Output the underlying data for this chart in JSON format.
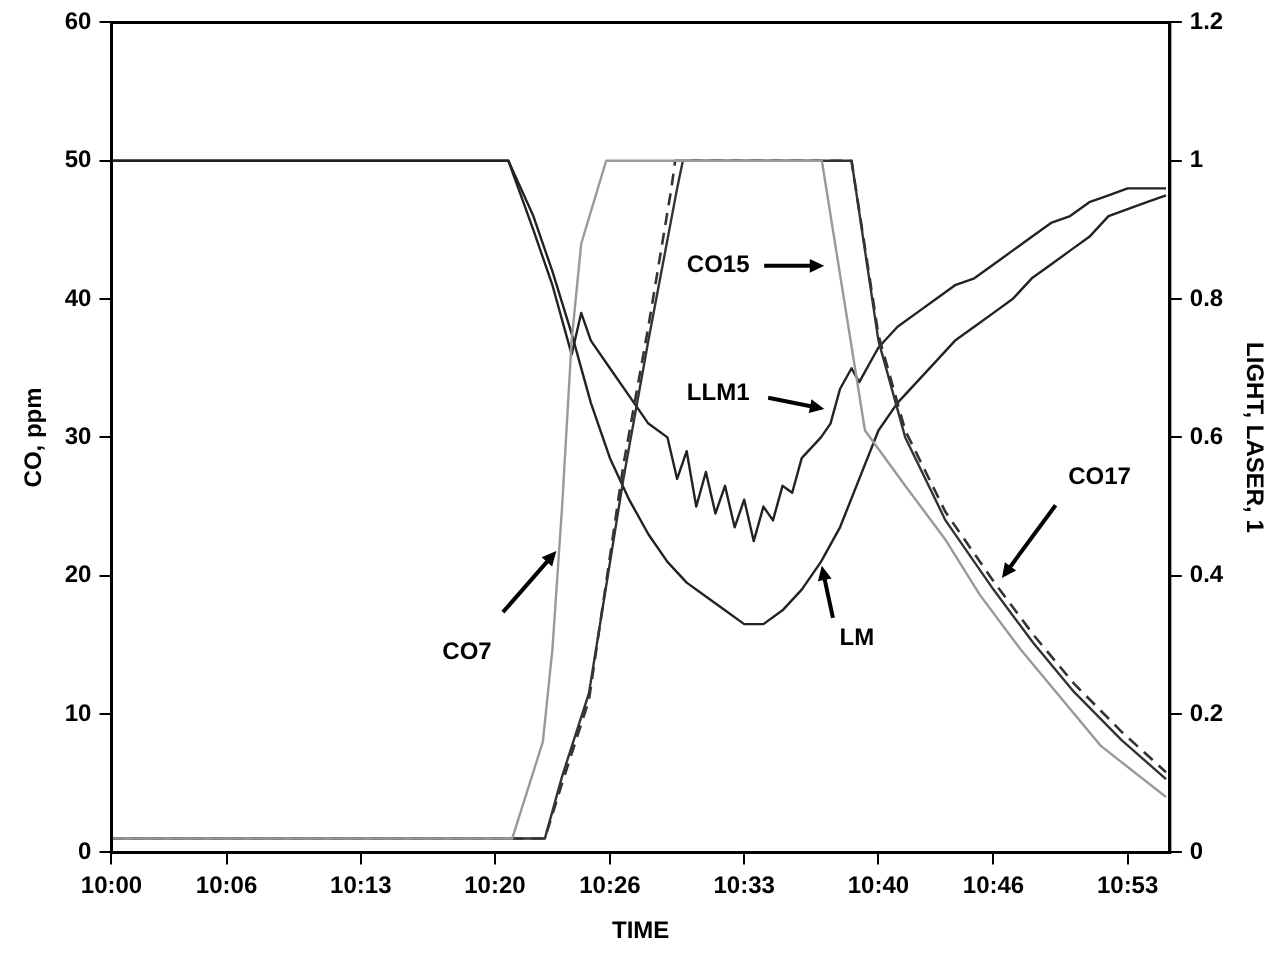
{
  "chart_data": {
    "type": "line",
    "xlabel": "TIME",
    "ylabel": "CO, ppm",
    "y2label": "LIGHT, LASER, 1",
    "xlim": [
      10,
      10.92
    ],
    "xticks": [
      {
        "value": 10,
        "label": "10:00"
      },
      {
        "value": 10.1,
        "label": "10:06"
      },
      {
        "value": 10.2167,
        "label": "10:13"
      },
      {
        "value": 10.3333,
        "label": "10:20"
      },
      {
        "value": 10.4333,
        "label": "10:26"
      },
      {
        "value": 10.55,
        "label": "10:33"
      },
      {
        "value": 10.6667,
        "label": "10:40"
      },
      {
        "value": 10.7667,
        "label": "10:46"
      },
      {
        "value": 10.8833,
        "label": "10:53"
      }
    ],
    "ylim": [
      0,
      60
    ],
    "yticks": [
      0,
      10,
      20,
      30,
      40,
      50,
      60
    ],
    "y2lim": [
      0,
      1.2
    ],
    "y2ticks": [
      0,
      0.2,
      0.4,
      0.6,
      0.8,
      1,
      1.2
    ],
    "grid": false,
    "legend": false,
    "marker": "none",
    "series": [
      {
        "color": "#999999",
        "line_style": "solid",
        "x": [
          10,
          10.3483,
          10.375,
          10.3833,
          10.3917,
          10.4,
          10.4083,
          10.43,
          10.6175,
          10.655,
          10.69,
          10.725,
          10.755,
          10.79,
          10.825,
          10.86,
          10.9167
        ],
        "values": [
          1,
          1,
          8,
          14.7,
          25,
          37,
          44,
          50,
          50,
          30.5,
          26.5,
          22.6,
          18.6,
          14.7,
          11.2,
          7.7,
          4
        ]
      },
      {
        "color": "#333333",
        "line_style": "solid",
        "x": [
          10,
          10.3767,
          10.3917,
          10.415,
          10.445,
          10.4667,
          10.4917,
          10.4967,
          10.6433,
          10.6667,
          10.69,
          10.725,
          10.7667,
          10.8017,
          10.8367,
          10.8783,
          10.9167
        ],
        "values": [
          1,
          1,
          5.5,
          11.5,
          27,
          37,
          48,
          50,
          50,
          37,
          30,
          24,
          19,
          15.1,
          11.6,
          8.1,
          5.3
        ]
      },
      {
        "color": "#333333",
        "line_style": "dashed",
        "x": [
          10,
          10.3767,
          10.3917,
          10.415,
          10.445,
          10.4667,
          10.4867,
          10.49,
          10.6433,
          10.6667,
          10.69,
          10.725,
          10.7667,
          10.8017,
          10.8367,
          10.8783,
          10.9167
        ],
        "values": [
          1,
          1,
          5,
          11,
          28,
          38,
          48,
          50,
          50,
          37.4,
          30.5,
          24.6,
          19.6,
          15.7,
          12.2,
          8.7,
          5.8
        ]
      },
      {
        "color": "#222222",
        "line_style": "solid",
        "axis": "y2",
        "x": [
          10,
          10.345,
          10.3667,
          10.3833,
          10.4,
          10.4167,
          10.4333,
          10.45,
          10.4667,
          10.4833,
          10.5,
          10.5167,
          10.5333,
          10.55,
          10.5667,
          10.5833,
          10.6,
          10.6167,
          10.6333,
          10.65,
          10.6667,
          10.6833,
          10.7,
          10.7167,
          10.7333,
          10.75,
          10.7667,
          10.7833,
          10.8,
          10.8167,
          10.8333,
          10.85,
          10.8667,
          10.8833,
          10.9,
          10.9167
        ],
        "values": [
          1,
          1,
          0.92,
          0.84,
          0.75,
          0.65,
          0.57,
          0.51,
          0.46,
          0.42,
          0.39,
          0.37,
          0.35,
          0.33,
          0.33,
          0.35,
          0.38,
          0.42,
          0.47,
          0.54,
          0.61,
          0.65,
          0.68,
          0.71,
          0.74,
          0.76,
          0.78,
          0.8,
          0.83,
          0.85,
          0.87,
          0.89,
          0.92,
          0.93,
          0.94,
          0.95
        ]
      },
      {
        "color": "#222222",
        "line_style": "solid",
        "axis": "y2",
        "x": [
          10,
          10.345,
          10.3667,
          10.3833,
          10.4,
          10.4083,
          10.4167,
          10.4333,
          10.45,
          10.4667,
          10.4833,
          10.4917,
          10.5,
          10.5083,
          10.5167,
          10.525,
          10.5333,
          10.5417,
          10.55,
          10.5583,
          10.5667,
          10.575,
          10.5833,
          10.5917,
          10.6,
          10.6167,
          10.625,
          10.6333,
          10.6433,
          10.65,
          10.6667,
          10.6833,
          10.7,
          10.7167,
          10.7333,
          10.75,
          10.7667,
          10.7833,
          10.8,
          10.8167,
          10.8333,
          10.85,
          10.8667,
          10.8833,
          10.9,
          10.9167
        ],
        "values": [
          1,
          1,
          0.9,
          0.82,
          0.72,
          0.78,
          0.74,
          0.7,
          0.66,
          0.62,
          0.6,
          0.54,
          0.58,
          0.5,
          0.55,
          0.49,
          0.53,
          0.47,
          0.51,
          0.45,
          0.5,
          0.48,
          0.53,
          0.52,
          0.57,
          0.6,
          0.62,
          0.67,
          0.7,
          0.68,
          0.73,
          0.76,
          0.78,
          0.8,
          0.82,
          0.83,
          0.85,
          0.87,
          0.89,
          0.91,
          0.92,
          0.94,
          0.95,
          0.96,
          0.96,
          0.96
        ]
      }
    ],
    "annotations": [
      {
        "text": "CO7",
        "x": 10.389,
        "y": 22
      },
      {
        "text": "CO15",
        "x": 10.623,
        "y": 42.4
      },
      {
        "text": "LLM1",
        "x": 10.623,
        "y": 32
      },
      {
        "text": "LM",
        "x": 10.6167,
        "y": 21
      },
      {
        "text": "CO17",
        "x": 10.772,
        "y": 19.6
      }
    ]
  }
}
